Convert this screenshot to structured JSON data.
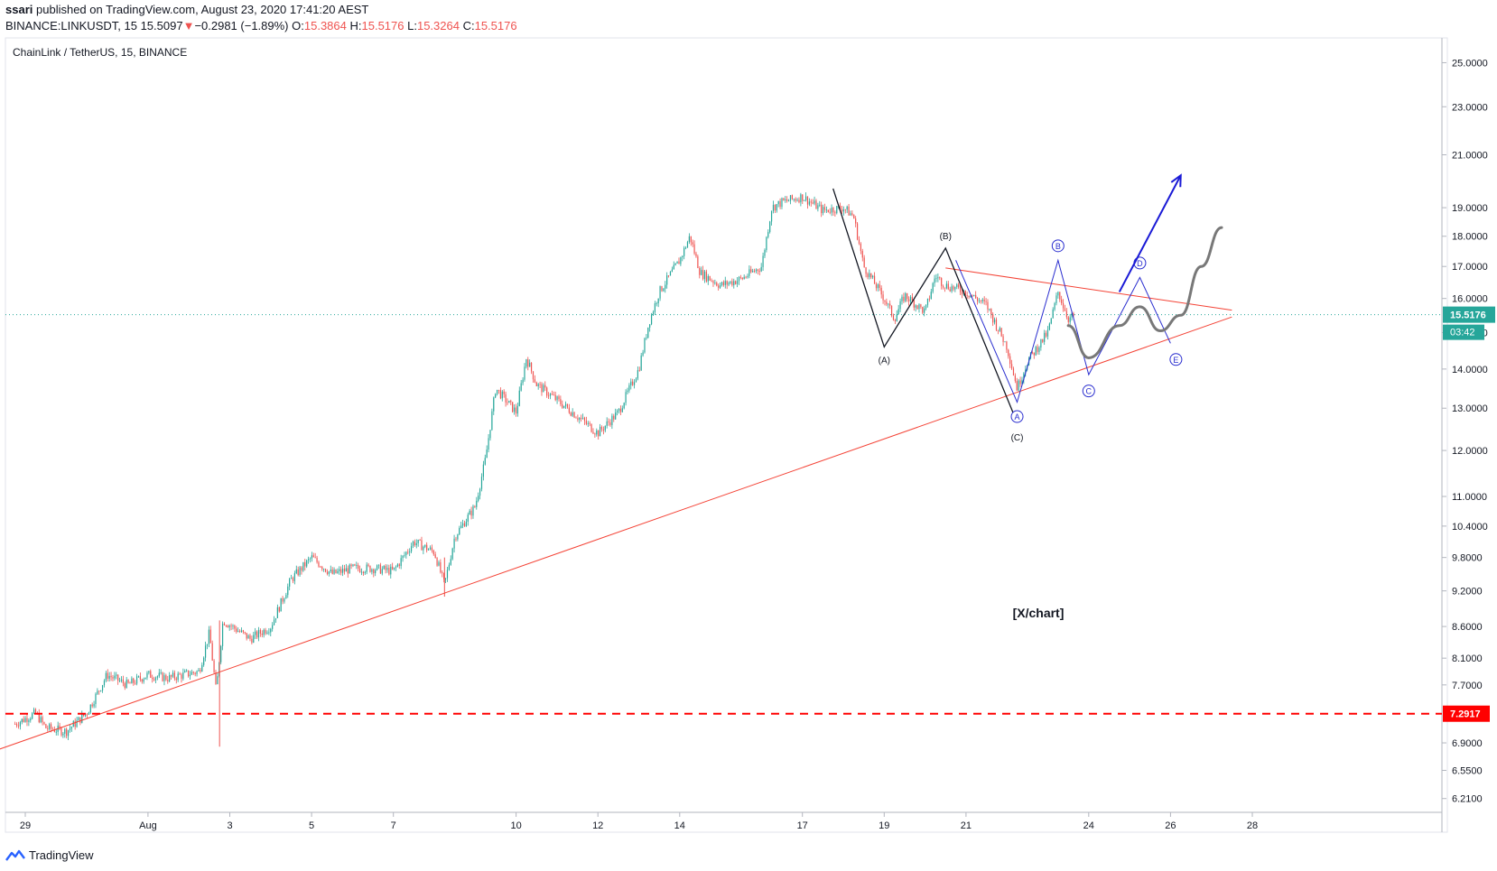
{
  "header": {
    "publisher": "ssari",
    "published_text": "published on TradingView.com, August 23, 2020 17:41:20 AEST",
    "symbol_line": "BINANCE:LINKUSDT, 15",
    "last": "15.5097",
    "change": "−0.2981 (−1.89%)",
    "o_label": "O:",
    "o": "15.3864",
    "h_label": "H:",
    "h": "15.5176",
    "l_label": "L:",
    "l": "15.3264",
    "c_label": "C:",
    "c": "15.5176"
  },
  "footer": {
    "brand": "TradingView"
  },
  "chart_data": {
    "type": "line",
    "title": "ChainLink / TetherUS, 15, BINANCE",
    "scale": "log",
    "ylim": [
      6.05,
      26.2
    ],
    "y_ticks": [
      "25.0000",
      "23.0000",
      "21.0000",
      "19.0000",
      "18.0000",
      "17.0000",
      "16.0000",
      "15.0000",
      "14.0000",
      "13.0000",
      "12.0000",
      "11.0000",
      "10.4000",
      "9.8000",
      "9.2000",
      "8.6000",
      "8.1000",
      "7.7000",
      "6.9000",
      "6.5500",
      "6.2100"
    ],
    "x_ticks": [
      "29",
      "Aug",
      "3",
      "5",
      "7",
      "10",
      "12",
      "14",
      "17",
      "19",
      "21",
      "24",
      "26",
      "28"
    ],
    "price_label": "15.5176",
    "countdown": "03:42",
    "level_label": "7.2917",
    "level_value": 7.2917,
    "colors": {
      "up": "#26a69a",
      "down": "#ef5350",
      "trend": "#f44336",
      "wave": "#131722",
      "blue": "#2a2ecf",
      "gray": "#787878"
    },
    "price_path": [
      [
        "Jul 28 18:00",
        7.15
      ],
      [
        "Jul 29 06:00",
        7.3
      ],
      [
        "Jul 29 12:00",
        7.1
      ],
      [
        "Jul 30 00:00",
        7.05
      ],
      [
        "Jul 30 12:00",
        7.3
      ],
      [
        "Jul 31 00:00",
        7.85
      ],
      [
        "Jul 31 12:00",
        7.7
      ],
      [
        "Aug 1 00:00",
        7.85
      ],
      [
        "Aug 1 12:00",
        7.8
      ],
      [
        "Aug 2 06:00",
        7.9
      ],
      [
        "Aug 2 12:00",
        8.5
      ],
      [
        "Aug 2 16:00",
        7.6
      ],
      [
        "Aug 2 20:00",
        8.7
      ],
      [
        "Aug 3 12:00",
        8.4
      ],
      [
        "Aug 4 00:00",
        8.6
      ],
      [
        "Aug 4 12:00",
        9.4
      ],
      [
        "Aug 5 00:00",
        9.8
      ],
      [
        "Aug 5 12:00",
        9.5
      ],
      [
        "Aug 6 00:00",
        9.6
      ],
      [
        "Aug 6 12:00",
        9.6
      ],
      [
        "Aug 7 00:00",
        9.55
      ],
      [
        "Aug 7 12:00",
        10.1
      ],
      [
        "Aug 8 00:00",
        9.9
      ],
      [
        "Aug 8 06:00",
        9.3
      ],
      [
        "Aug 8 12:00",
        10.2
      ],
      [
        "Aug 9 00:00",
        10.8
      ],
      [
        "Aug 9 06:00",
        11.8
      ],
      [
        "Aug 9 12:00",
        13.5
      ],
      [
        "Aug 10 00:00",
        12.9
      ],
      [
        "Aug 10 06:00",
        14.3
      ],
      [
        "Aug 10 12:00",
        13.6
      ],
      [
        "Aug 11 00:00",
        13.2
      ],
      [
        "Aug 11 12:00",
        12.8
      ],
      [
        "Aug 12 00:00",
        12.4
      ],
      [
        "Aug 12 12:00",
        12.9
      ],
      [
        "Aug 13 00:00",
        14.0
      ],
      [
        "Aug 13 06:00",
        15.3
      ],
      [
        "Aug 13 12:00",
        16.2
      ],
      [
        "Aug 14 00:00",
        17.2
      ],
      [
        "Aug 14 06:00",
        18.0
      ],
      [
        "Aug 14 12:00",
        16.8
      ],
      [
        "Aug 15 00:00",
        16.4
      ],
      [
        "Aug 15 12:00",
        16.6
      ],
      [
        "Aug 16 00:00",
        17.0
      ],
      [
        "Aug 16 06:00",
        19.0
      ],
      [
        "Aug 16 12:00",
        19.2
      ],
      [
        "Aug 17 00:00",
        19.4
      ],
      [
        "Aug 17 12:00",
        18.9
      ],
      [
        "Aug 18 00:00",
        19.0
      ],
      [
        "Aug 18 06:00",
        18.7
      ],
      [
        "Aug 18 12:00",
        17.0
      ],
      [
        "Aug 19 00:00",
        16.0
      ],
      [
        "Aug 19 06:00",
        15.4
      ],
      [
        "Aug 19 12:00",
        16.1
      ],
      [
        "Aug 20 00:00",
        15.6
      ],
      [
        "Aug 20 06:00",
        16.7
      ],
      [
        "Aug 20 12:00",
        16.4
      ],
      [
        "Aug 21 00:00",
        16.2
      ],
      [
        "Aug 21 12:00",
        15.8
      ],
      [
        "Aug 22 00:00",
        14.6
      ],
      [
        "Aug 22 06:00",
        13.5
      ],
      [
        "Aug 22 12:00",
        14.2
      ],
      [
        "Aug 23 00:00",
        15.0
      ],
      [
        "Aug 23 06:00",
        16.2
      ],
      [
        "Aug 23 12:00",
        15.4
      ],
      [
        "Aug 23 16:00",
        15.5
      ]
    ],
    "trend_lines": [
      {
        "from": [
          "Jul 28",
          6.75
        ],
        "to": [
          "Aug 27 12:00",
          15.45
        ]
      },
      {
        "from": [
          "Aug 20 12:00",
          16.95
        ],
        "to": [
          "Aug 27 12:00",
          15.65
        ]
      }
    ],
    "wave_abc": {
      "points": [
        [
          "Aug 17 18:00",
          19.7
        ],
        [
          "Aug 19 00:00",
          14.6
        ],
        [
          "Aug 20 12:00",
          17.6
        ],
        [
          "Aug 22 06:00",
          12.65
        ]
      ],
      "labels": [
        "(A)",
        "(B)",
        "(C)"
      ]
    },
    "wave_abcde": {
      "points": [
        [
          "Aug 20 18:00",
          17.2
        ],
        [
          "Aug 22 06:00",
          13.15
        ],
        [
          "Aug 23 06:00",
          17.2
        ],
        [
          "Aug 24 00:00",
          13.85
        ],
        [
          "Aug 25 06:00",
          16.65
        ],
        [
          "Aug 26 00:00",
          14.7
        ]
      ],
      "labels": [
        "A",
        "B",
        "C",
        "D",
        "E"
      ]
    },
    "projection_gray": [
      [
        "Aug 23 12:00",
        15.2
      ],
      [
        "Aug 24 00:00",
        14.3
      ],
      [
        "Aug 24 18:00",
        15.2
      ],
      [
        "Aug 25 06:00",
        15.75
      ],
      [
        "Aug 25 18:00",
        15.05
      ],
      [
        "Aug 26 06:00",
        15.5
      ],
      [
        "Aug 26 18:00",
        17.0
      ],
      [
        "Aug 27 06:00",
        18.3
      ]
    ],
    "projection_arrow": {
      "from": [
        "Aug 24 18:00",
        16.2
      ],
      "to": [
        "Aug 26 06:00",
        20.2
      ]
    },
    "watermark": "[X/chart]"
  }
}
